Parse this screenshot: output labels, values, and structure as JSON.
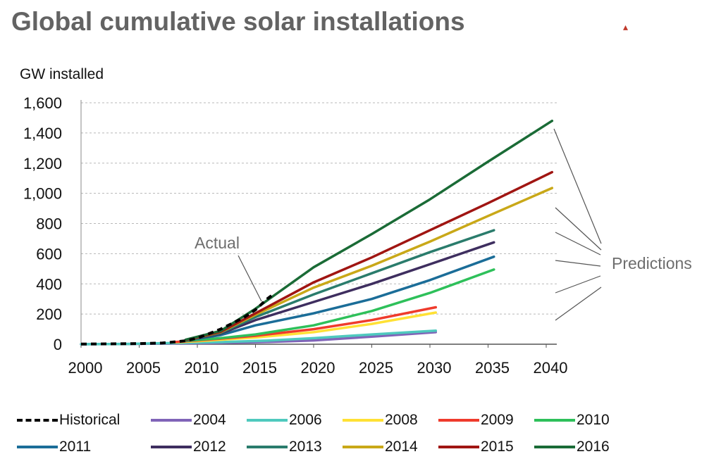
{
  "title": "Global cumulative solar installations",
  "chart_data": {
    "type": "line",
    "ylabel": "GW installed",
    "xlabel": "",
    "xlim": [
      2000,
      2040
    ],
    "ylim": [
      0,
      1600
    ],
    "x_ticks": [
      "2000",
      "2005",
      "2010",
      "2015",
      "2020",
      "2025",
      "2030",
      "2035",
      "2040"
    ],
    "y_ticks": [
      "0",
      "200",
      "400",
      "600",
      "800",
      "1,000",
      "1,200",
      "1,400",
      "1,600"
    ],
    "grid": "horizontal dashed",
    "annotations": {
      "actual": "Actual",
      "predictions": "Predictions"
    },
    "series": [
      {
        "name": "Historical",
        "color": "#000000",
        "dashed": true,
        "x": [
          2000,
          2005,
          2007,
          2008,
          2009,
          2010,
          2011,
          2012,
          2013,
          2014,
          2015,
          2016,
          2016.6
        ],
        "y": [
          1,
          4,
          8,
          15,
          23,
          40,
          70,
          100,
          138,
          177,
          228,
          300,
          335
        ]
      },
      {
        "name": "2004",
        "color": "#8064b8",
        "x": [
          2000,
          2004,
          2008,
          2012,
          2016,
          2020,
          2025,
          2030.5
        ],
        "y": [
          0,
          2,
          5,
          9,
          15,
          25,
          50,
          80
        ]
      },
      {
        "name": "2006",
        "color": "#4fc9be",
        "x": [
          2000,
          2004,
          2006,
          2008,
          2012,
          2016,
          2020,
          2025,
          2030.5
        ],
        "y": [
          0,
          2,
          5,
          8,
          14,
          24,
          40,
          65,
          90
        ]
      },
      {
        "name": "2008",
        "color": "#ffe135",
        "x": [
          2008,
          2010,
          2012,
          2015,
          2020,
          2025,
          2030.5
        ],
        "y": [
          12,
          20,
          30,
          45,
          80,
          135,
          210
        ]
      },
      {
        "name": "2009",
        "color": "#ef3b2c",
        "x": [
          2008,
          2010,
          2012,
          2015,
          2020,
          2025,
          2030.5
        ],
        "y": [
          14,
          25,
          37,
          56,
          100,
          160,
          245
        ]
      },
      {
        "name": "2010",
        "color": "#2ec05a",
        "x": [
          2009,
          2012,
          2015,
          2020,
          2025,
          2030,
          2035.5
        ],
        "y": [
          22,
          40,
          65,
          125,
          220,
          340,
          495
        ]
      },
      {
        "name": "2011",
        "color": "#1b6d98",
        "x": [
          2009,
          2012,
          2015,
          2020,
          2025,
          2030,
          2035.5
        ],
        "y": [
          25,
          60,
          125,
          205,
          300,
          425,
          580
        ]
      },
      {
        "name": "2012",
        "color": "#3e2e5f",
        "x": [
          2009,
          2012,
          2015,
          2020,
          2025,
          2030,
          2035.5
        ],
        "y": [
          25,
          70,
          160,
          280,
          400,
          530,
          675
        ]
      },
      {
        "name": "2013",
        "color": "#2a7c6c",
        "x": [
          2009,
          2012,
          2015,
          2020,
          2025,
          2030,
          2035.5
        ],
        "y": [
          26,
          75,
          180,
          330,
          470,
          610,
          755
        ]
      },
      {
        "name": "2014",
        "color": "#c9a818",
        "x": [
          2009,
          2012,
          2015,
          2020,
          2025,
          2030,
          2035,
          2040.5
        ],
        "y": [
          27,
          80,
          195,
          375,
          520,
          680,
          850,
          1035
        ]
      },
      {
        "name": "2015",
        "color": "#a01512",
        "x": [
          2009,
          2012,
          2015,
          2020,
          2025,
          2030,
          2035,
          2040.5
        ],
        "y": [
          28,
          82,
          205,
          410,
          575,
          755,
          935,
          1140
        ]
      },
      {
        "name": "2016",
        "color": "#1a6b36",
        "x": [
          2009,
          2012,
          2015,
          2020,
          2025,
          2030,
          2035,
          2040.5
        ],
        "y": [
          30,
          88,
          235,
          510,
          730,
          960,
          1210,
          1480
        ]
      }
    ]
  }
}
